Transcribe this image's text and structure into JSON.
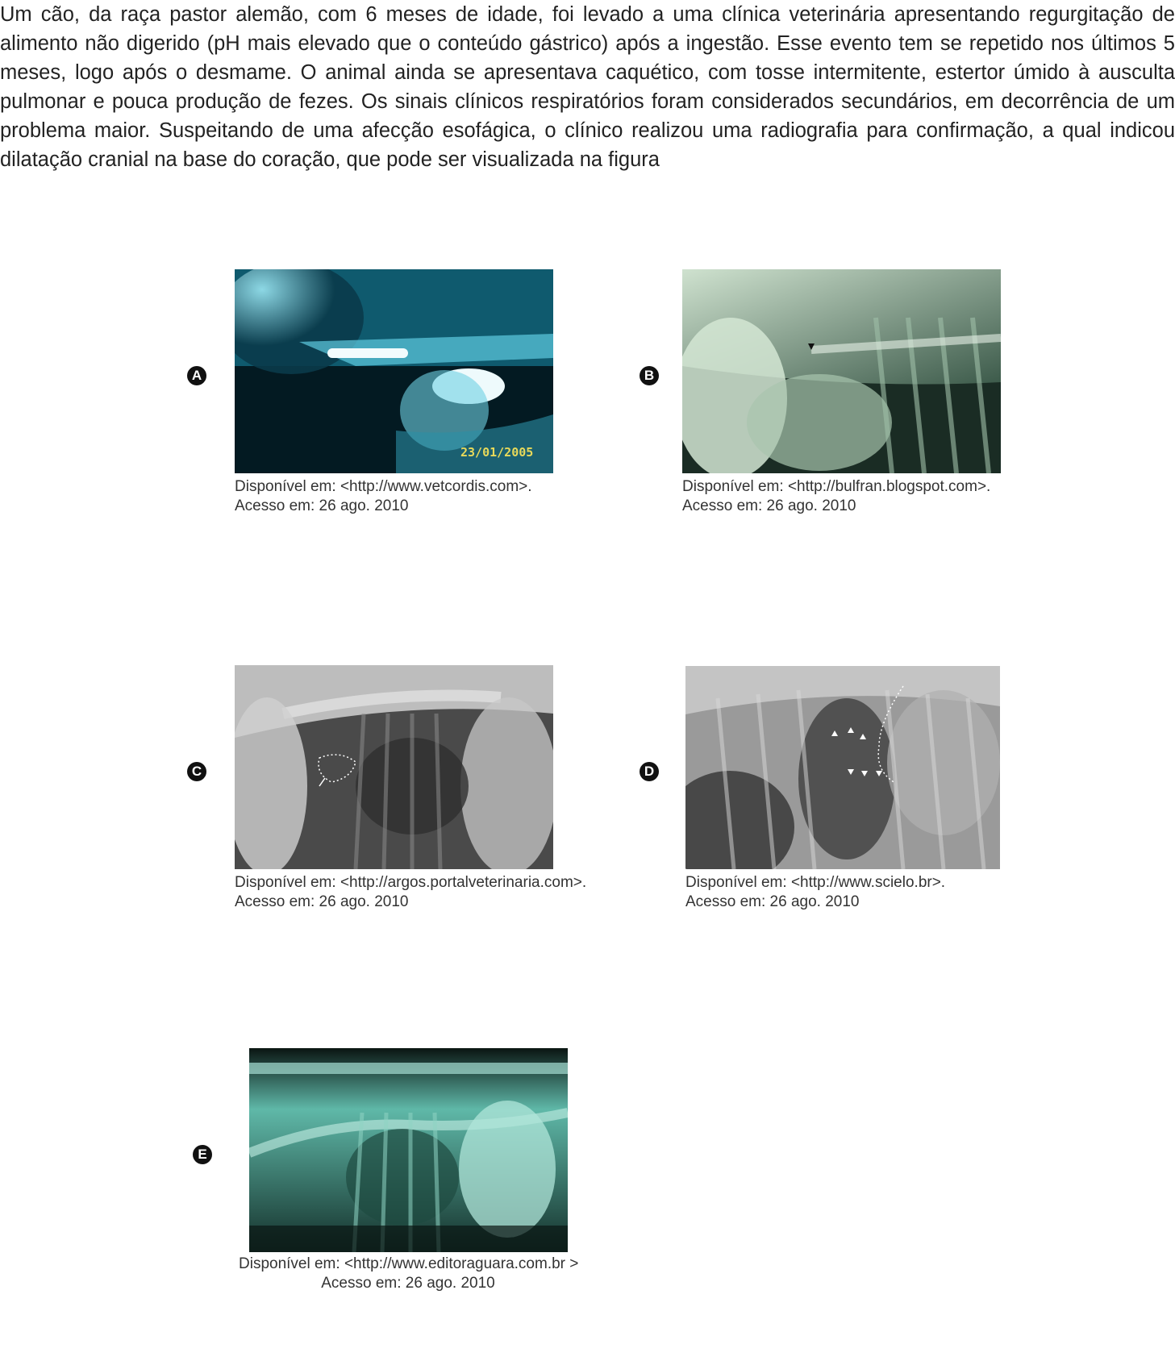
{
  "question": {
    "text": "Um cão, da raça pastor alemão, com 6 meses de idade, foi levado a uma clínica veterinária apresentando regurgitação de alimento não digerido (pH mais elevado que o conteúdo gástrico) após a ingestão. Esse evento tem se repetido nos últimos 5 meses, logo após o desmame. O animal ainda se apresentava caquético, com tosse intermitente, estertor úmido à ausculta pulmonar e pouca produção de fezes. Os sinais clínicos respiratórios foram considerados secundários, em decorrência de um problema maior. Suspeitando de uma afecção esofágica, o clínico realizou uma radiografia para confirmação, a qual indicou dilatação cranial na base do coração, que pode ser visualizada na figura"
  },
  "options": [
    {
      "letter": "A",
      "image_icon": "xray-image",
      "date_stamp": "23/01/2005",
      "caption_line1": "Disponível em: <http://www.vetcordis.com>.",
      "caption_line2": "Acesso em: 26 ago. 2010"
    },
    {
      "letter": "B",
      "image_icon": "xray-image",
      "caption_line1": "Disponível em:  <http://bulfran.blogspot.com>.",
      "caption_line2": "Acesso em: 26 ago. 2010"
    },
    {
      "letter": "C",
      "image_icon": "xray-image",
      "caption_line1": "Disponível em: <http://argos.portalveterinaria.com>.",
      "caption_line2": "Acesso em: 26 ago. 2010"
    },
    {
      "letter": "D",
      "image_icon": "xray-image",
      "caption_line1": "Disponível em:  <http://www.scielo.br>.",
      "caption_line2": "Acesso em: 26 ago. 2010"
    },
    {
      "letter": "E",
      "image_icon": "xray-image",
      "caption_line1": "Disponível em: <http://www.editoraguara.com.br  >",
      "caption_line2": "Acesso em: 26 ago. 2010"
    }
  ]
}
